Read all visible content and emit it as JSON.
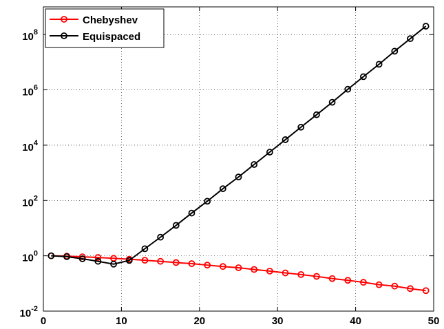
{
  "chart_data": {
    "type": "line",
    "x": [
      1,
      3,
      5,
      7,
      9,
      11,
      13,
      15,
      17,
      19,
      21,
      23,
      25,
      27,
      29,
      31,
      33,
      35,
      37,
      39,
      41,
      43,
      45,
      47,
      49
    ],
    "series": [
      {
        "name": "Chebyshev",
        "color": "#ff0000",
        "values": [
          1,
          0.97,
          0.92,
          0.87,
          0.81,
          0.75,
          0.69,
          0.63,
          0.57,
          0.52,
          0.46,
          0.41,
          0.37,
          0.32,
          0.28,
          0.24,
          0.21,
          0.18,
          0.15,
          0.13,
          0.11,
          0.09,
          0.08,
          0.065,
          0.055
        ]
      },
      {
        "name": "Equispaced",
        "color": "#000000",
        "values": [
          1,
          0.93,
          0.78,
          0.63,
          0.5,
          0.68,
          1.8,
          4.7,
          12.6,
          35,
          94,
          266,
          708,
          2000,
          5600,
          15800,
          44700,
          126000,
          355000,
          1050000,
          3000000,
          8400000,
          25000000,
          71000000,
          200000000
        ]
      }
    ],
    "xlim": [
      0,
      50
    ],
    "xticks": [
      0,
      10,
      20,
      30,
      40,
      50
    ],
    "ylim": [
      0.01,
      1000000000
    ],
    "yticks": [
      {
        "value": 0.01,
        "label": "10^-2"
      },
      {
        "value": 1,
        "label": "10^0"
      },
      {
        "value": 100,
        "label": "10^2"
      },
      {
        "value": 10000,
        "label": "10^4"
      },
      {
        "value": 1000000,
        "label": "10^6"
      },
      {
        "value": 100000000,
        "label": "10^8"
      }
    ],
    "ylog": true,
    "grid": true,
    "legend": "upper-left"
  }
}
